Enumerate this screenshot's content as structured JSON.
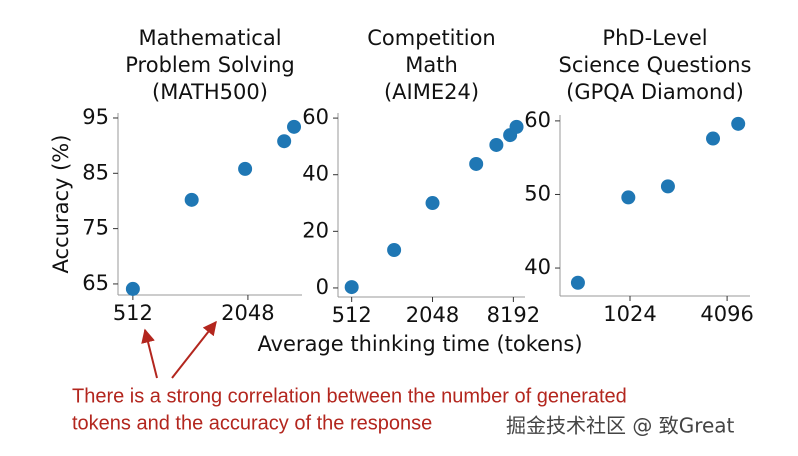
{
  "chart_data": [
    {
      "type": "scatter",
      "title": [
        "Mathematical",
        "Problem Solving",
        "(MATH500)"
      ],
      "ylabel": "Accuracy (%)",
      "color": "#1f77b4",
      "xscale": "log",
      "x": [
        512,
        1040,
        1980,
        3170,
        3570
      ],
      "values": [
        64.1,
        80.2,
        85.8,
        90.8,
        93.4
      ],
      "xlim": [
        428,
        3930
      ],
      "ylim": [
        63.0,
        95.9
      ],
      "xticks": [
        512,
        2048
      ],
      "yticks": [
        65,
        75,
        85,
        95
      ]
    },
    {
      "type": "scatter",
      "title": [
        "Competition",
        "Math",
        "(AIME24)"
      ],
      "xlabel": "Average thinking time (tokens)",
      "color": "#1f77b4",
      "xscale": "log",
      "x": [
        512,
        1060,
        2048,
        4330,
        6120,
        7750,
        8650
      ],
      "values": [
        0.3,
        13.4,
        30,
        43.8,
        50.5,
        54,
        56.9
      ],
      "xlim": [
        405,
        10000
      ],
      "ylim": [
        -3.2,
        61.8
      ],
      "xticks": [
        512,
        2048,
        8192
      ],
      "yticks": [
        0,
        20,
        40,
        60
      ]
    },
    {
      "type": "scatter",
      "title": [
        "PhD-Level",
        "Science Questions",
        "(GPQA Diamond)"
      ],
      "color": "#1f77b4",
      "xscale": "log",
      "x": [
        487,
        1000,
        1760,
        3350,
        4800
      ],
      "values": [
        38,
        49.6,
        51.1,
        57.6,
        59.6
      ],
      "xlim": [
        377,
        5680
      ],
      "ylim": [
        36.2,
        60.8
      ],
      "xticks": [
        1024,
        4096
      ],
      "yticks": [
        40,
        50,
        60
      ]
    }
  ],
  "annotation": [
    "There is a strong correlation between the number of generated",
    "tokens and the accuracy of the response"
  ],
  "watermark": "掘金技术社区 @ 致Great"
}
